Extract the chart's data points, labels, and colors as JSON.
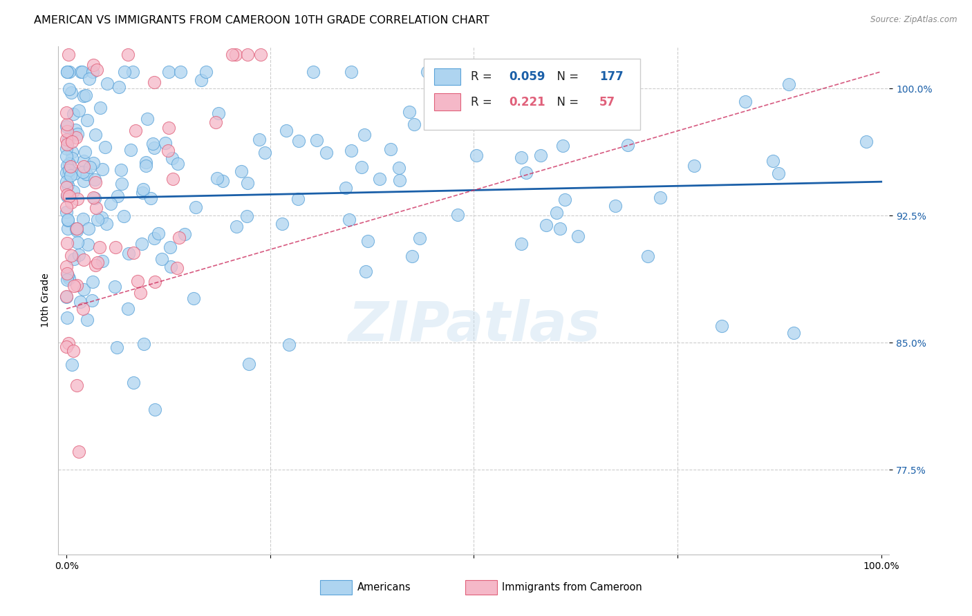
{
  "title": "AMERICAN VS IMMIGRANTS FROM CAMEROON 10TH GRADE CORRELATION CHART",
  "source": "Source: ZipAtlas.com",
  "ylabel": "10th Grade",
  "americans": {
    "R": 0.059,
    "N": 177,
    "color": "#aed4f0",
    "edge_color": "#5ba3d9",
    "line_color": "#1a5fa8"
  },
  "cameroon": {
    "R": 0.221,
    "N": 57,
    "color": "#f5b8c8",
    "edge_color": "#e0607a",
    "line_color": "#cc3060"
  },
  "xlim": [
    -0.01,
    1.01
  ],
  "ylim": [
    0.725,
    1.025
  ],
  "yticks": [
    0.775,
    0.85,
    0.925,
    1.0
  ],
  "ytick_labels": [
    "77.5%",
    "85.0%",
    "92.5%",
    "100.0%"
  ],
  "xticks": [
    0.0,
    0.25,
    0.5,
    0.75,
    1.0
  ],
  "xtick_labels": [
    "0.0%",
    "",
    "",
    "",
    "100.0%"
  ],
  "legend_R_american": "0.059",
  "legend_N_american": "177",
  "legend_R_cameroon": "0.221",
  "legend_N_cameroon": "57",
  "watermark": "ZIPatlas",
  "background_color": "#ffffff",
  "grid_color": "#cccccc",
  "title_fontsize": 11.5,
  "axis_label_fontsize": 10,
  "tick_fontsize": 10,
  "seed": 99,
  "am_line_start_y": 0.935,
  "am_line_end_y": 0.945,
  "ca_line_start_y": 0.87,
  "ca_line_end_y": 1.01
}
